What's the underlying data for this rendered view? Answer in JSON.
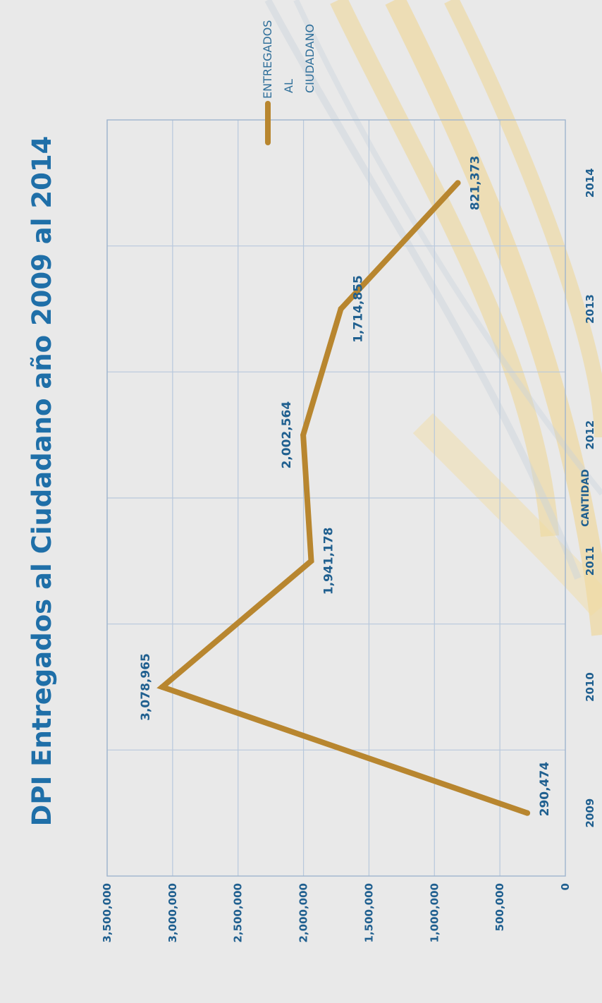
{
  "chart_data": {
    "type": "line",
    "title": "DPI Entregados al Ciudadano año 2009 al 2014",
    "xlabel": "",
    "ylabel": "CANTIDAD",
    "categories": [
      "2009",
      "2010",
      "2011",
      "2012",
      "2013",
      "2014"
    ],
    "series": [
      {
        "name": "ENTREGADOS AL CIUDADANO",
        "values": [
          290474,
          3078965,
          1941178,
          2002564,
          1714855,
          821373
        ],
        "labels": [
          "290,474",
          "3,078,965",
          "1,941,178",
          "2,002,564",
          "1,714,855",
          "821,373"
        ],
        "color": "#b8862f"
      }
    ],
    "ylim": [
      0,
      3500000
    ],
    "yticks": [
      0,
      500000,
      1000000,
      1500000,
      2000000,
      2500000,
      3000000,
      3500000
    ],
    "ytick_labels": [
      "0",
      "500,000",
      "1,000,000",
      "1,500,000",
      "2,000,000",
      "2,500,000",
      "3,000,000",
      "3,500,000"
    ],
    "legend": {
      "position": "right",
      "lines": [
        "ENTREGADOS",
        "AL",
        "CIUDADANO"
      ]
    },
    "grid": true,
    "orientation": "rotated 90° counter-clockwise"
  },
  "colors": {
    "title": "#1f6fa8",
    "text": "#1f5f8f",
    "series": "#b8862f",
    "grid": "#b7c8dc",
    "background": "#e9e9e9",
    "decor_gold": "#f0d48a"
  }
}
